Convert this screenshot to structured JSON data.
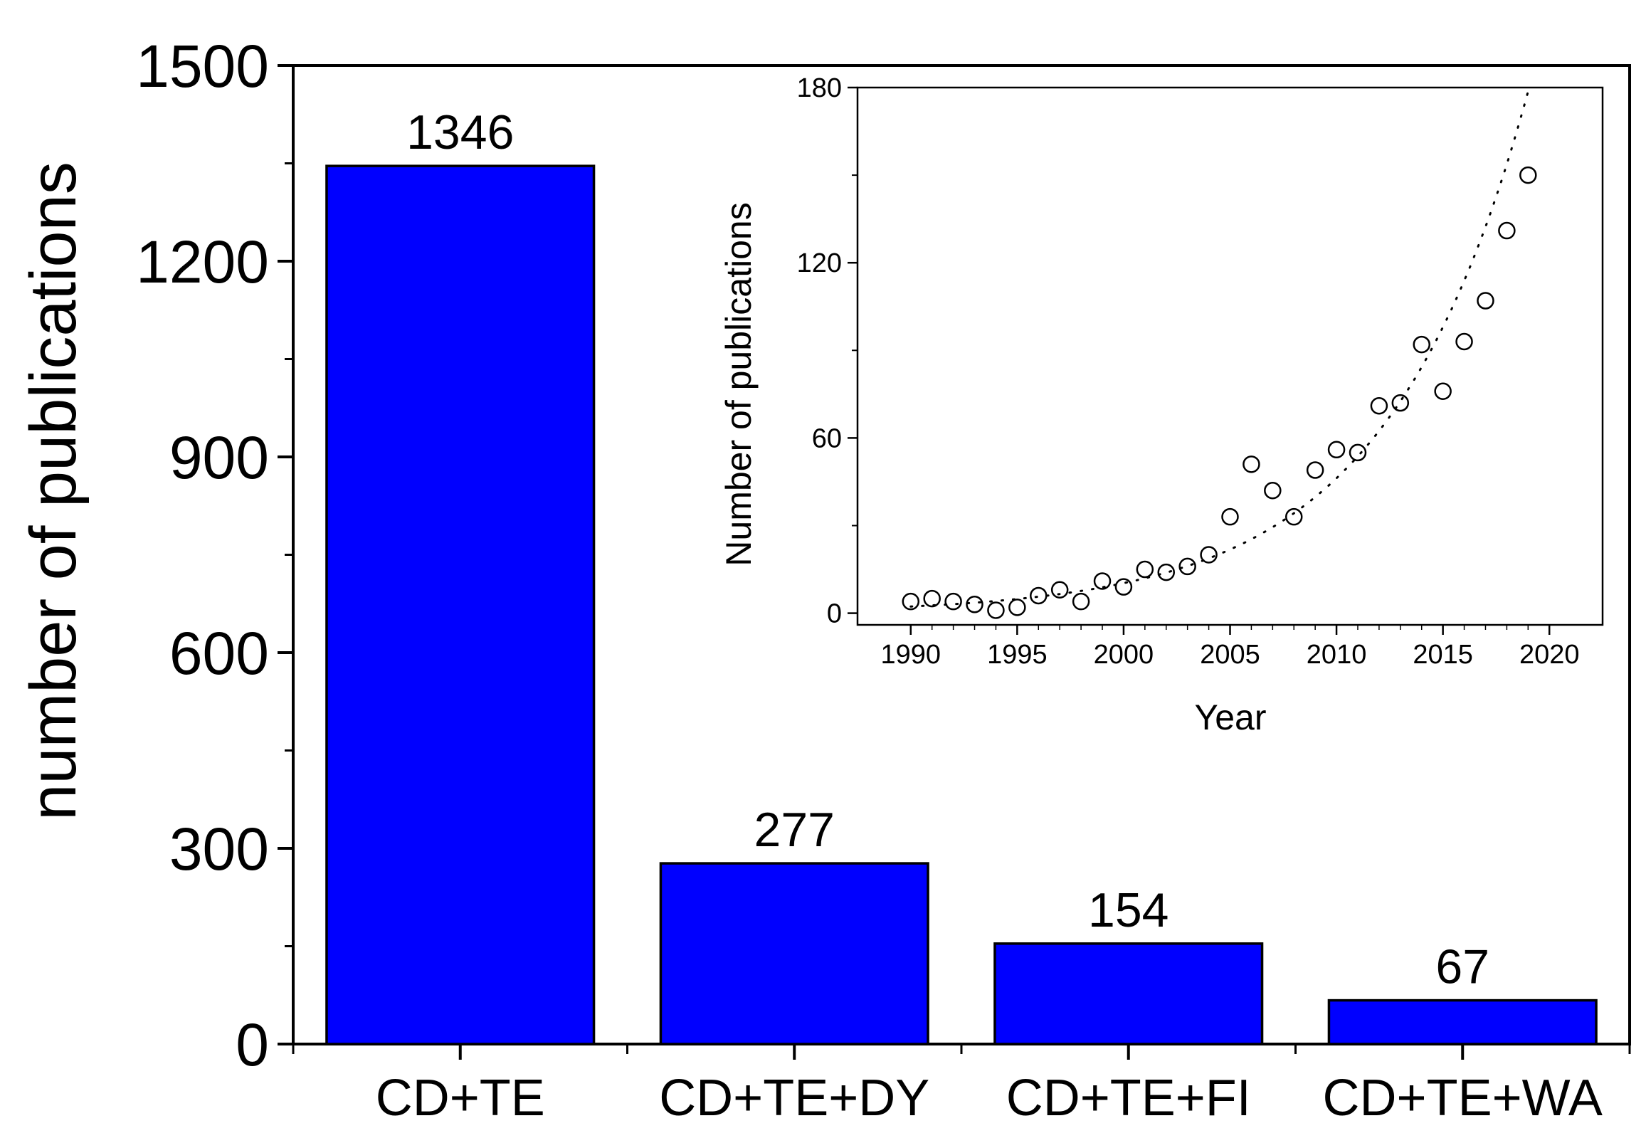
{
  "chart_data": [
    {
      "type": "bar",
      "title": "",
      "xlabel": "",
      "ylabel": "number of publications",
      "ylim": [
        0,
        1500
      ],
      "yticks": [
        "0",
        "300",
        "600",
        "900",
        "1200",
        "1500"
      ],
      "categories": [
        "CD+TE",
        "CD+TE+DY",
        "CD+TE+FI",
        "CD+TE+WA"
      ],
      "values": [
        1346,
        277,
        154,
        67
      ],
      "data_labels": [
        "1346",
        "277",
        "154",
        "67"
      ],
      "bar_color": "#0000ff",
      "grid": false,
      "legend": "none"
    },
    {
      "type": "scatter",
      "title": "",
      "xlabel": "Year",
      "ylabel": "Number of publications",
      "xlim": [
        1987.5,
        2022.5
      ],
      "ylim": [
        -4,
        180
      ],
      "xticks": [
        "1990",
        "1995",
        "2000",
        "2005",
        "2010",
        "2015",
        "2020"
      ],
      "yticks": [
        "0",
        "60",
        "120",
        "180"
      ],
      "x": [
        1990,
        1991,
        1992,
        1993,
        1994,
        1995,
        1996,
        1997,
        1998,
        1999,
        2000,
        2001,
        2002,
        2003,
        2004,
        2005,
        2006,
        2007,
        2008,
        2009,
        2010,
        2011,
        2012,
        2013,
        2014,
        2015,
        2016,
        2017,
        2018,
        2019
      ],
      "y": [
        4,
        5,
        4,
        3,
        1,
        2,
        6,
        8,
        4,
        11,
        9,
        15,
        14,
        16,
        20,
        33,
        51,
        42,
        33,
        49,
        56,
        55,
        71,
        72,
        92,
        76,
        93,
        107,
        131,
        150
      ],
      "trendline": "dotted exponential fit",
      "marker": "open circle",
      "grid": false,
      "legend": "none"
    }
  ]
}
